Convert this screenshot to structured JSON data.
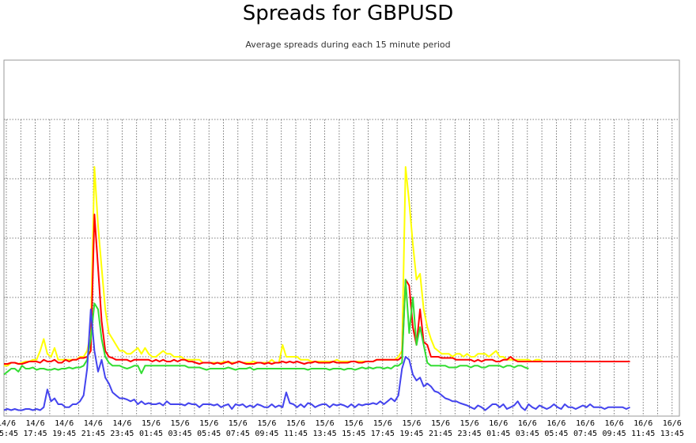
{
  "chart_data": {
    "type": "line",
    "title": "Spreads for GBPUSD",
    "subtitle": "Average spreads during each 15 minute period",
    "xlabel": "",
    "ylabel": "",
    "grid": true,
    "x_tick_labels": [
      [
        "14/6",
        "15:45"
      ],
      [
        "14/6",
        "17:45"
      ],
      [
        "14/6",
        "19:45"
      ],
      [
        "14/6",
        "21:45"
      ],
      [
        "14/6",
        "23:45"
      ],
      [
        "15/6",
        "01:45"
      ],
      [
        "15/6",
        "03:45"
      ],
      [
        "15/6",
        "05:45"
      ],
      [
        "15/6",
        "07:45"
      ],
      [
        "15/6",
        "09:45"
      ],
      [
        "15/6",
        "11:45"
      ],
      [
        "15/6",
        "13:45"
      ],
      [
        "15/6",
        "15:45"
      ],
      [
        "15/6",
        "17:45"
      ],
      [
        "15/6",
        "19:45"
      ],
      [
        "15/6",
        "21:45"
      ],
      [
        "15/6",
        "23:45"
      ],
      [
        "16/6",
        "01:45"
      ],
      [
        "16/6",
        "03:45"
      ],
      [
        "16/6",
        "05:45"
      ],
      [
        "16/6",
        "07:45"
      ],
      [
        "16/6",
        "09:45"
      ],
      [
        "16/6",
        "11:45"
      ],
      [
        "16/6",
        "13:45"
      ]
    ],
    "ylim": [
      0,
      6
    ],
    "series": [
      {
        "color": "#ffff00",
        "values": [
          0.85,
          0.85,
          0.9,
          0.9,
          0.88,
          0.9,
          0.92,
          0.92,
          0.95,
          0.95,
          1.1,
          1.3,
          1.05,
          1.0,
          1.15,
          0.95,
          0.95,
          0.95,
          0.95,
          0.95,
          0.95,
          1.0,
          1.0,
          1.1,
          1.4,
          4.2,
          3.2,
          2.5,
          1.8,
          1.4,
          1.3,
          1.2,
          1.1,
          1.1,
          1.05,
          1.05,
          1.1,
          1.15,
          1.05,
          1.15,
          1.05,
          1.0,
          1.0,
          1.05,
          1.1,
          1.05,
          1.05,
          1.0,
          1.0,
          1.0,
          0.95,
          0.95,
          0.95,
          0.95,
          0.95,
          0.9,
          0.9,
          0.9,
          0.9,
          0.9,
          0.9,
          0.92,
          0.9,
          0.9,
          0.9,
          0.92,
          0.9,
          0.9,
          0.9,
          0.92,
          0.9,
          0.9,
          0.9,
          0.9,
          0.95,
          0.9,
          0.9,
          1.2,
          1.0,
          1.0,
          1.0,
          1.0,
          0.95,
          0.95,
          0.95,
          0.92,
          0.92,
          0.92,
          0.92,
          0.92,
          0.92,
          0.92,
          0.95,
          0.92,
          0.92,
          0.92,
          0.92,
          0.92,
          0.92,
          0.92,
          0.92,
          0.92,
          0.92,
          0.95,
          0.95,
          0.95,
          0.95,
          0.95,
          0.95,
          1.0,
          1.1,
          4.2,
          3.6,
          2.9,
          2.3,
          2.4,
          1.8,
          1.5,
          1.3,
          1.15,
          1.1,
          1.05,
          1.05,
          1.05,
          1.0,
          1.05,
          1.05,
          1.0,
          1.05,
          1.0,
          1.0,
          1.05,
          1.05,
          1.05,
          1.0,
          1.05,
          1.1,
          1.0,
          1.0,
          0.95,
          0.95,
          0.95,
          0.95,
          0.95,
          0.95,
          0.95,
          0.92,
          0.95,
          0.95,
          0.92,
          0.92,
          0.92,
          0.92,
          0.92,
          0.92,
          0.92,
          0.92,
          0.92,
          0.92,
          0.92,
          0.92,
          0.92,
          0.92,
          0.92,
          0.92,
          0.92,
          0.92,
          0.92,
          0.92,
          0.92,
          0.92
        ]
      },
      {
        "color": "#ff0000",
        "values": [
          0.88,
          0.88,
          0.9,
          0.9,
          0.88,
          0.88,
          0.9,
          0.92,
          0.92,
          0.92,
          0.9,
          0.95,
          0.92,
          0.92,
          0.95,
          0.9,
          0.9,
          0.95,
          0.92,
          0.95,
          0.95,
          0.98,
          0.98,
          1.0,
          1.1,
          3.4,
          2.5,
          1.6,
          1.1,
          1.0,
          0.98,
          0.95,
          0.95,
          0.95,
          0.95,
          0.92,
          0.95,
          0.95,
          0.95,
          0.95,
          0.95,
          0.92,
          0.95,
          0.92,
          0.95,
          0.92,
          0.92,
          0.95,
          0.92,
          0.95,
          0.95,
          0.92,
          0.92,
          0.9,
          0.88,
          0.9,
          0.9,
          0.9,
          0.88,
          0.9,
          0.88,
          0.9,
          0.92,
          0.88,
          0.9,
          0.92,
          0.9,
          0.88,
          0.88,
          0.88,
          0.9,
          0.9,
          0.88,
          0.9,
          0.88,
          0.9,
          0.9,
          0.92,
          0.9,
          0.92,
          0.9,
          0.92,
          0.9,
          0.88,
          0.9,
          0.9,
          0.92,
          0.9,
          0.9,
          0.9,
          0.9,
          0.92,
          0.9,
          0.9,
          0.9,
          0.9,
          0.92,
          0.92,
          0.9,
          0.9,
          0.92,
          0.92,
          0.92,
          0.95,
          0.95,
          0.95,
          0.95,
          0.95,
          0.95,
          0.95,
          1.0,
          2.3,
          2.2,
          1.5,
          1.2,
          1.8,
          1.25,
          1.2,
          1.0,
          1.0,
          1.0,
          0.98,
          0.98,
          0.98,
          0.98,
          0.95,
          0.95,
          0.95,
          0.95,
          0.95,
          0.92,
          0.95,
          0.92,
          0.95,
          0.95,
          0.95,
          0.92,
          0.92,
          0.95,
          0.95,
          1.0,
          0.95,
          0.92,
          0.92,
          0.92,
          0.92,
          0.92,
          0.92,
          0.92,
          0.92,
          0.92,
          0.92,
          0.92,
          0.92,
          0.92,
          0.92,
          0.92,
          0.92,
          0.92,
          0.92,
          0.92,
          0.92,
          0.92,
          0.92,
          0.92,
          0.92,
          0.92,
          0.92,
          0.92,
          0.92,
          0.92,
          0.92,
          0.92,
          0.92
        ]
      },
      {
        "color": "#33dd33",
        "values": [
          0.7,
          0.75,
          0.8,
          0.8,
          0.75,
          0.85,
          0.8,
          0.8,
          0.82,
          0.78,
          0.8,
          0.8,
          0.78,
          0.78,
          0.8,
          0.78,
          0.8,
          0.8,
          0.82,
          0.8,
          0.82,
          0.82,
          0.85,
          0.95,
          1.3,
          1.9,
          1.8,
          1.3,
          1.0,
          0.9,
          0.85,
          0.85,
          0.85,
          0.82,
          0.8,
          0.82,
          0.85,
          0.85,
          0.72,
          0.85,
          0.85,
          0.85,
          0.85,
          0.85,
          0.85,
          0.85,
          0.85,
          0.85,
          0.85,
          0.85,
          0.85,
          0.82,
          0.82,
          0.82,
          0.82,
          0.8,
          0.78,
          0.8,
          0.8,
          0.8,
          0.8,
          0.8,
          0.82,
          0.8,
          0.78,
          0.8,
          0.8,
          0.8,
          0.82,
          0.78,
          0.8,
          0.8,
          0.8,
          0.8,
          0.8,
          0.8,
          0.8,
          0.8,
          0.8,
          0.8,
          0.8,
          0.8,
          0.8,
          0.8,
          0.78,
          0.8,
          0.8,
          0.8,
          0.8,
          0.8,
          0.78,
          0.8,
          0.8,
          0.8,
          0.78,
          0.8,
          0.8,
          0.78,
          0.8,
          0.82,
          0.8,
          0.82,
          0.8,
          0.82,
          0.82,
          0.8,
          0.82,
          0.8,
          0.85,
          0.85,
          0.9,
          2.3,
          1.4,
          2.0,
          1.2,
          1.5,
          1.2,
          0.9,
          0.85,
          0.85,
          0.85,
          0.85,
          0.85,
          0.82,
          0.82,
          0.82,
          0.85,
          0.85,
          0.85,
          0.82,
          0.85,
          0.85,
          0.82,
          0.82,
          0.85,
          0.85,
          0.85,
          0.85,
          0.82,
          0.85,
          0.85,
          0.82,
          0.85,
          0.85,
          0.82,
          0.8
        ]
      },
      {
        "color": "#4444ee",
        "values": [
          0.1,
          0.12,
          0.1,
          0.12,
          0.1,
          0.1,
          0.12,
          0.12,
          0.1,
          0.12,
          0.1,
          0.15,
          0.45,
          0.25,
          0.3,
          0.2,
          0.2,
          0.15,
          0.15,
          0.2,
          0.2,
          0.25,
          0.35,
          0.8,
          1.8,
          1.1,
          0.75,
          0.95,
          0.65,
          0.55,
          0.4,
          0.35,
          0.3,
          0.3,
          0.28,
          0.25,
          0.28,
          0.2,
          0.25,
          0.2,
          0.22,
          0.2,
          0.2,
          0.22,
          0.18,
          0.25,
          0.2,
          0.2,
          0.2,
          0.2,
          0.18,
          0.22,
          0.2,
          0.2,
          0.15,
          0.2,
          0.2,
          0.2,
          0.18,
          0.2,
          0.15,
          0.18,
          0.2,
          0.12,
          0.2,
          0.18,
          0.2,
          0.15,
          0.18,
          0.15,
          0.2,
          0.18,
          0.15,
          0.15,
          0.2,
          0.15,
          0.18,
          0.15,
          0.4,
          0.22,
          0.2,
          0.15,
          0.2,
          0.15,
          0.22,
          0.2,
          0.15,
          0.18,
          0.2,
          0.2,
          0.15,
          0.2,
          0.18,
          0.2,
          0.18,
          0.15,
          0.2,
          0.15,
          0.2,
          0.18,
          0.2,
          0.2,
          0.22,
          0.2,
          0.25,
          0.2,
          0.25,
          0.3,
          0.25,
          0.35,
          0.8,
          1.0,
          0.95,
          0.7,
          0.6,
          0.65,
          0.5,
          0.55,
          0.5,
          0.42,
          0.4,
          0.35,
          0.3,
          0.28,
          0.25,
          0.25,
          0.22,
          0.2,
          0.18,
          0.15,
          0.12,
          0.18,
          0.15,
          0.1,
          0.15,
          0.2,
          0.2,
          0.15,
          0.2,
          0.12,
          0.15,
          0.18,
          0.25,
          0.15,
          0.1,
          0.2,
          0.15,
          0.12,
          0.18,
          0.15,
          0.12,
          0.15,
          0.2,
          0.15,
          0.12,
          0.2,
          0.15,
          0.15,
          0.12,
          0.15,
          0.18,
          0.15,
          0.2,
          0.15,
          0.15,
          0.15,
          0.12,
          0.15,
          0.15,
          0.15,
          0.15,
          0.15,
          0.12,
          0.15
        ]
      }
    ]
  }
}
